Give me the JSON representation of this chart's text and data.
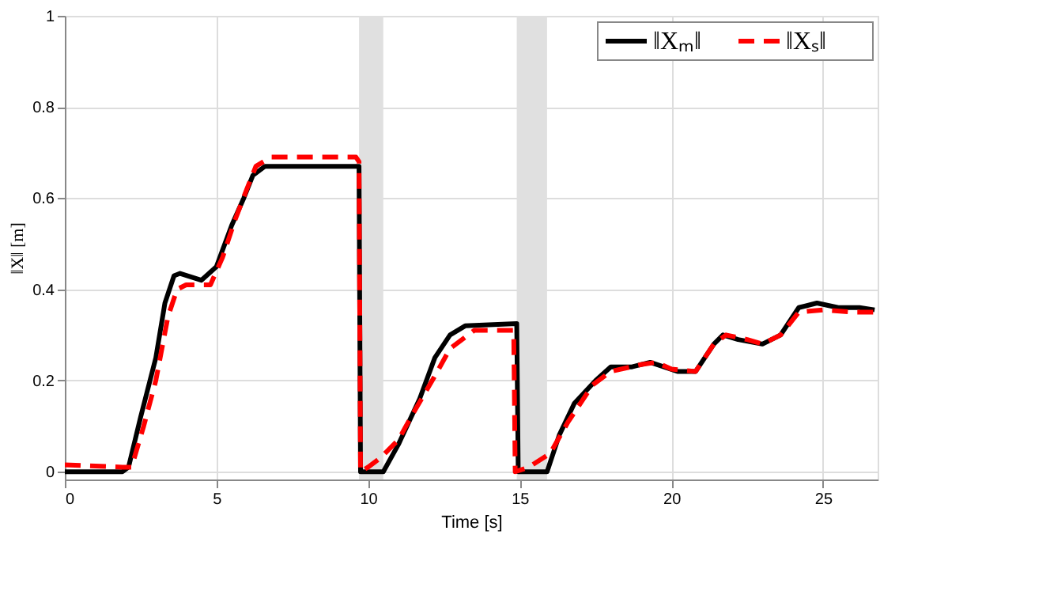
{
  "chart_data": {
    "type": "line",
    "xlabel": "Time [s]",
    "ylabel": "‖X‖ [m]",
    "xlim": [
      0,
      26.8
    ],
    "ylim": [
      -0.017,
      1
    ],
    "xticks": [
      0,
      5,
      10,
      15,
      20,
      25
    ],
    "yticks": [
      0,
      0.2,
      0.4,
      0.6,
      0.8,
      1
    ],
    "grid": true,
    "legend": "top right",
    "bands": [
      {
        "axis": "x",
        "from": 9.7,
        "to": 10.5,
        "color": "#e0e0e0"
      },
      {
        "axis": "x",
        "from": 14.9,
        "to": 15.9,
        "color": "#e0e0e0"
      }
    ],
    "series": [
      {
        "name": "‖Xₘ‖",
        "color": "#000000",
        "line_style": "solid",
        "x": [
          0,
          1.9,
          2.1,
          2.5,
          3,
          3.3,
          3.6,
          3.8,
          4.5,
          5,
          5.5,
          5.9,
          6.2,
          6.6,
          9.7,
          9.75,
          10.5,
          11,
          11.7,
          12.2,
          12.7,
          13.2,
          14.9,
          14.95,
          15.9,
          16.3,
          16.8,
          17.5,
          18,
          18.7,
          19.3,
          20.2,
          20.8,
          21.4,
          21.7,
          22.2,
          23,
          23.6,
          24.2,
          24.8,
          25.5,
          26.2,
          26.7
        ],
        "values": [
          0,
          0,
          0.01,
          0.12,
          0.25,
          0.37,
          0.43,
          0.435,
          0.42,
          0.45,
          0.54,
          0.6,
          0.65,
          0.67,
          0.67,
          0,
          0,
          0.06,
          0.16,
          0.25,
          0.3,
          0.32,
          0.325,
          0,
          0,
          0.08,
          0.15,
          0.2,
          0.23,
          0.23,
          0.24,
          0.22,
          0.22,
          0.28,
          0.3,
          0.29,
          0.28,
          0.3,
          0.36,
          0.37,
          0.36,
          0.36,
          0.355
        ]
      },
      {
        "name": "‖Xₛ‖",
        "color": "#ff0000",
        "line_style": "dashed",
        "x": [
          0,
          1.9,
          2.2,
          2.6,
          3,
          3.4,
          3.7,
          4,
          4.8,
          5.2,
          5.6,
          6,
          6.3,
          6.8,
          9.6,
          9.7,
          9.75,
          10,
          10.4,
          11,
          11.5,
          12.2,
          12.7,
          13.5,
          14.8,
          14.85,
          15.3,
          16,
          16.6,
          17.4,
          18,
          19,
          19.5,
          20,
          20.8,
          21.4,
          21.8,
          22.5,
          23,
          23.6,
          24.2,
          25,
          26,
          26.7
        ],
        "values": [
          0.015,
          0.01,
          0.01,
          0.1,
          0.2,
          0.34,
          0.4,
          0.41,
          0.41,
          0.47,
          0.55,
          0.62,
          0.67,
          0.69,
          0.69,
          0.68,
          0,
          0.01,
          0.03,
          0.07,
          0.13,
          0.21,
          0.27,
          0.31,
          0.31,
          0,
          0.01,
          0.04,
          0.11,
          0.19,
          0.22,
          0.235,
          0.24,
          0.225,
          0.22,
          0.28,
          0.3,
          0.29,
          0.28,
          0.3,
          0.35,
          0.355,
          0.35,
          0.35
        ]
      }
    ]
  }
}
